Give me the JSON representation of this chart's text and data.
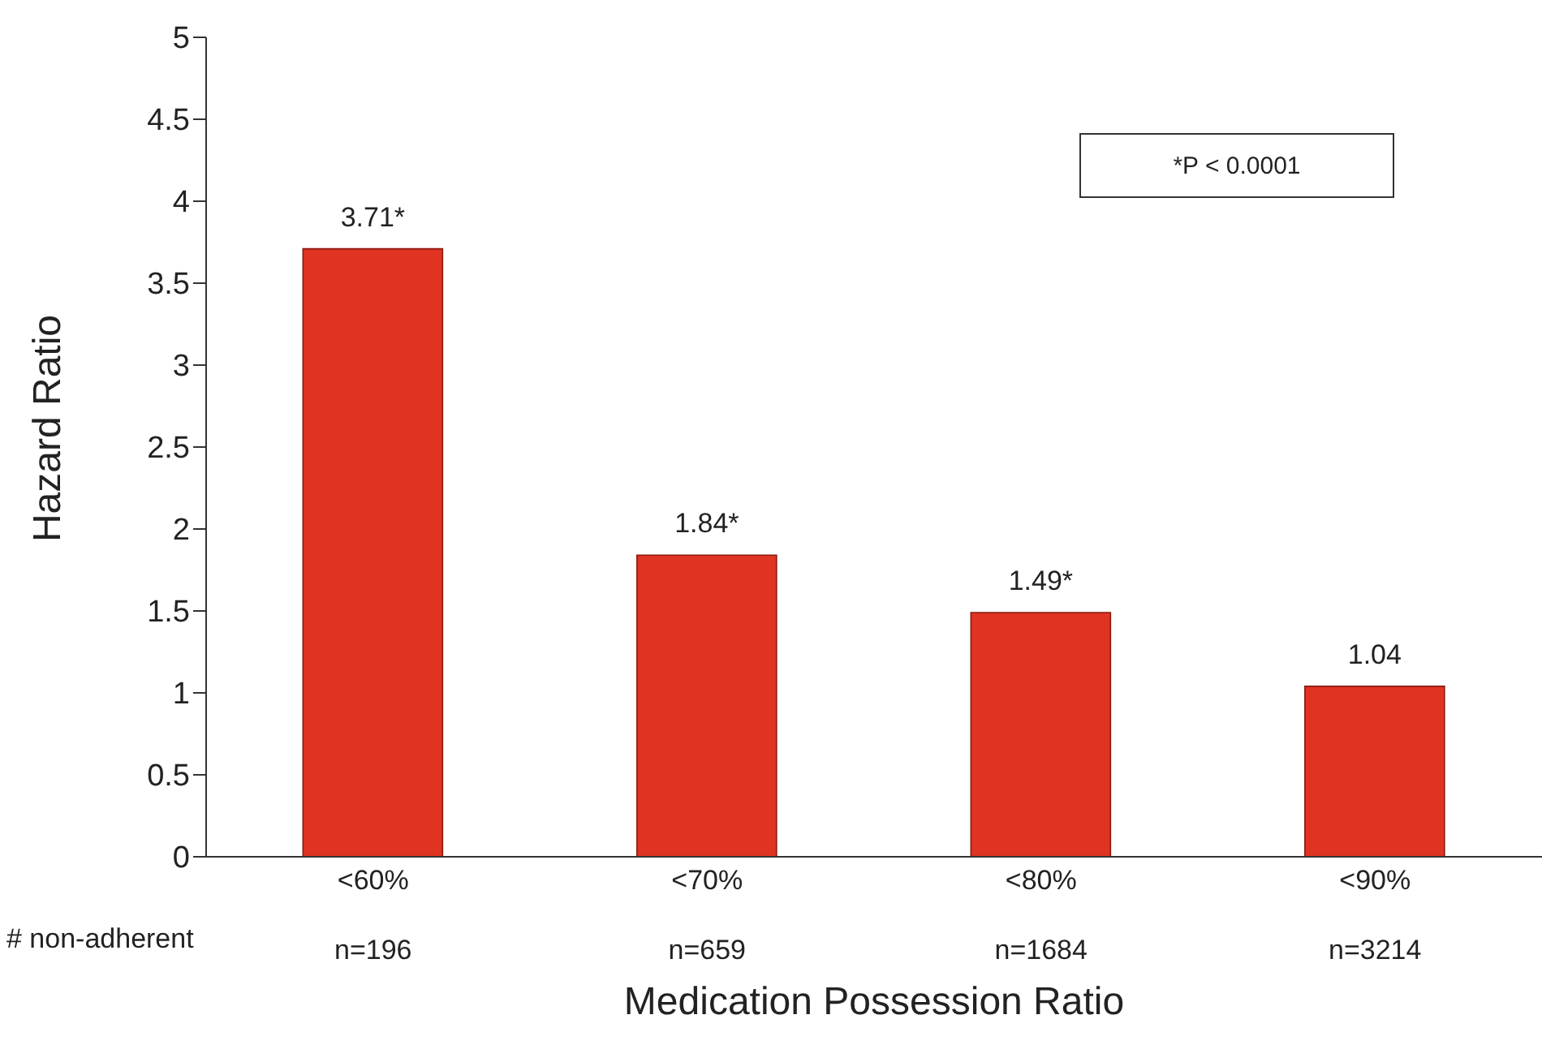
{
  "chart_data": {
    "type": "bar",
    "xlabel": "Medication Possession Ratio",
    "ylabel": "Hazard Ratio",
    "categories": [
      "<60%",
      "<70%",
      "<80%",
      "<90%"
    ],
    "values": [
      3.71,
      1.84,
      1.49,
      1.04
    ],
    "color": "#e03322",
    "value_labels": [
      "3.71*",
      "1.84*",
      "1.49*",
      "1.04"
    ],
    "ylim": [
      0,
      5
    ],
    "yticks": [
      0,
      0.5,
      1,
      1.5,
      2,
      2.5,
      3,
      3.5,
      4,
      4.5,
      5
    ],
    "grid": false,
    "legend": false,
    "annotations": [
      "*P < 0.0001",
      "# non-adherent",
      "n=196",
      "n=659",
      "n=1684",
      "n=3214"
    ]
  }
}
